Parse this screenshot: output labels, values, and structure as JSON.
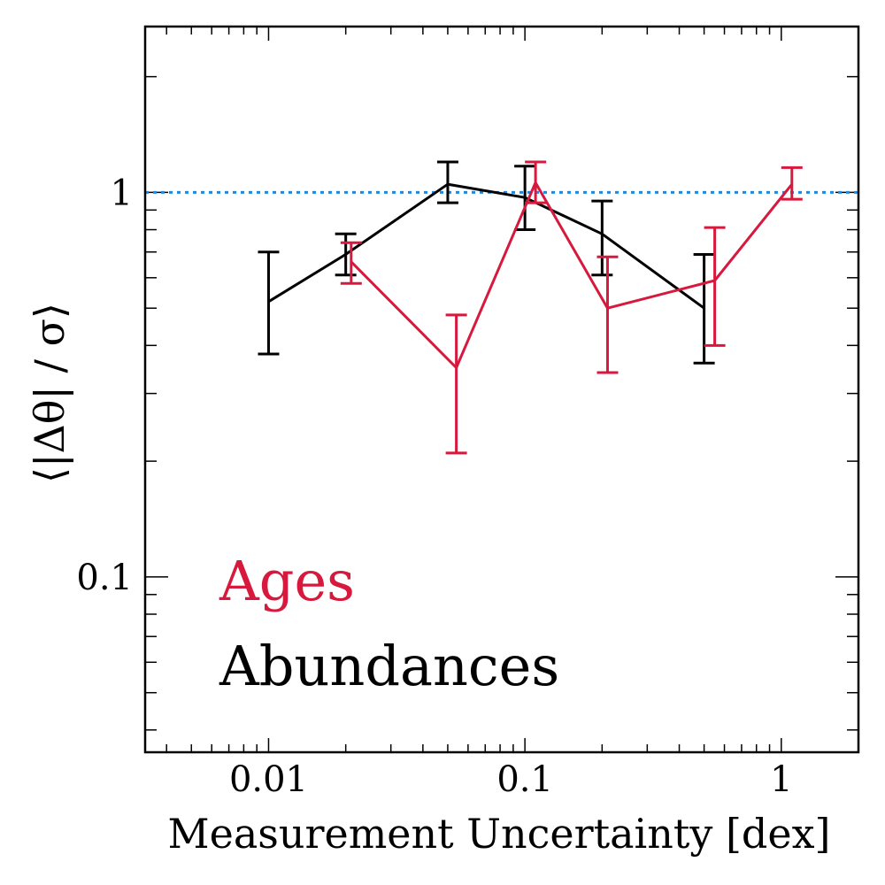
{
  "chart_data": {
    "type": "line",
    "xlabel": "Measurement Uncertainty [dex]",
    "ylabel": "⟨|Δθ| / σ⟩",
    "x_scale": "log",
    "y_scale": "log",
    "xlim": [
      0.0033,
      2.0
    ],
    "ylim": [
      0.035,
      2.7
    ],
    "x_ticks": [
      {
        "value": 0.01,
        "label": "0.01"
      },
      {
        "value": 0.1,
        "label": "0.1"
      },
      {
        "value": 1,
        "label": "1"
      }
    ],
    "y_ticks": [
      {
        "value": 0.1,
        "label": "0.1"
      },
      {
        "value": 1,
        "label": "1"
      }
    ],
    "reference_line": {
      "y": 1.0,
      "style": "dotted",
      "color": "#1e88e5"
    },
    "grid": false,
    "legend_placement": "bottom-left",
    "series": [
      {
        "name": "Ages",
        "color": "#d6193d",
        "points": [
          {
            "x": 0.021,
            "y": 0.66,
            "err_low": 0.58,
            "err_high": 0.74
          },
          {
            "x": 0.054,
            "y": 0.35,
            "err_low": 0.21,
            "err_high": 0.48
          },
          {
            "x": 0.11,
            "y": 1.06,
            "err_low": 0.94,
            "err_high": 1.2
          },
          {
            "x": 0.21,
            "y": 0.5,
            "err_low": 0.34,
            "err_high": 0.68
          },
          {
            "x": 0.55,
            "y": 0.59,
            "err_low": 0.4,
            "err_high": 0.81
          },
          {
            "x": 1.1,
            "y": 1.05,
            "err_low": 0.96,
            "err_high": 1.16
          }
        ]
      },
      {
        "name": "Abundances",
        "color": "#000000",
        "points": [
          {
            "x": 0.01,
            "y": 0.52,
            "err_low": 0.38,
            "err_high": 0.7
          },
          {
            "x": 0.02,
            "y": 0.69,
            "err_low": 0.61,
            "err_high": 0.78
          },
          {
            "x": 0.05,
            "y": 1.05,
            "err_low": 0.94,
            "err_high": 1.2
          },
          {
            "x": 0.1,
            "y": 0.97,
            "err_low": 0.8,
            "err_high": 1.17
          },
          {
            "x": 0.2,
            "y": 0.78,
            "err_low": 0.61,
            "err_high": 0.95
          },
          {
            "x": 0.5,
            "y": 0.5,
            "err_low": 0.36,
            "err_high": 0.69
          }
        ]
      }
    ]
  }
}
